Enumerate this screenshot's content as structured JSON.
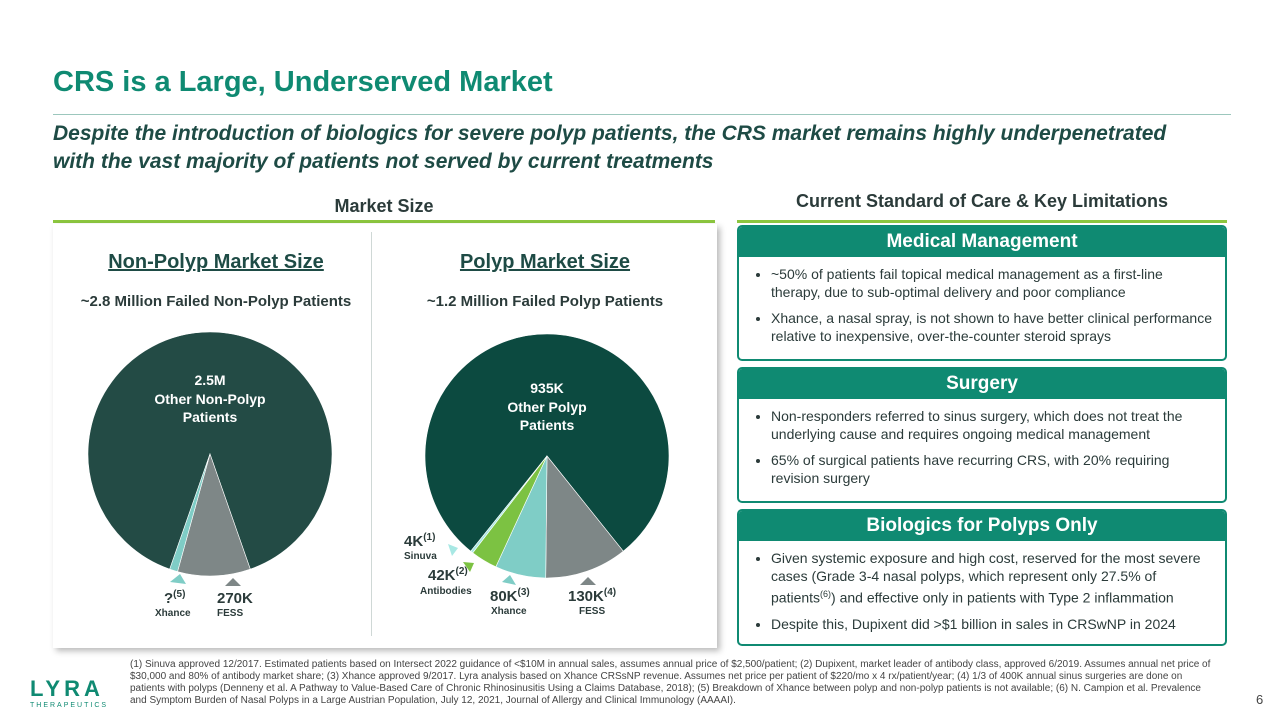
{
  "title": "CRS is a Large, Underserved Market",
  "subtitle": "Despite the introduction of biologics for severe polyp patients, the CRS market remains highly underpenetrated with the vast majority of patients not served by current treatments",
  "market_size_heading": "Market Size",
  "care_heading": "Current Standard of Care & Key Limitations",
  "non_polyp": {
    "title": "Non-Polyp Market Size",
    "subtitle": "~2.8 Million Failed Non-Polyp Patients",
    "slice_label_1": "2.5M",
    "slice_label_2": "Other Non-Polyp",
    "slice_label_3": "Patients",
    "xhance_value": "?",
    "xhance_sup": "(5)",
    "xhance_name": "Xhance",
    "fess_value": "270K",
    "fess_name": "FESS"
  },
  "polyp": {
    "title": "Polyp Market Size",
    "subtitle": "~1.2 Million Failed Polyp Patients",
    "slice_label_1": "935K",
    "slice_label_2": "Other Polyp",
    "slice_label_3": "Patients",
    "sinuva_value": "4K",
    "sinuva_sup": "(1)",
    "sinuva_name": "Sinuva",
    "antibodies_value": "42K",
    "antibodies_sup": "(2)",
    "antibodies_name": "Antibodies",
    "xhance_value": "80K",
    "xhance_sup": "(3)",
    "xhance_name": "Xhance",
    "fess_value": "130K",
    "fess_sup": "(4)",
    "fess_name": "FESS"
  },
  "chart_data": [
    {
      "type": "pie",
      "title": "Non-Polyp Market Size",
      "subtitle": "~2.8 Million Failed Non-Polyp Patients",
      "categories": [
        "Other Non-Polyp Patients",
        "FESS",
        "Xhance"
      ],
      "values": [
        2500000,
        270000,
        30000
      ],
      "colors": [
        "#234b45",
        "#7e8787",
        "#7fcdc6"
      ]
    },
    {
      "type": "pie",
      "title": "Polyp Market Size",
      "subtitle": "~1.2 Million Failed Polyp Patients",
      "categories": [
        "Other Polyp Patients",
        "FESS",
        "Xhance",
        "Antibodies",
        "Sinuva"
      ],
      "values": [
        935000,
        130000,
        80000,
        42000,
        4000
      ],
      "colors": [
        "#0c4a40",
        "#7e8787",
        "#7fcdc6",
        "#7cc242",
        "#a8e8e4"
      ]
    }
  ],
  "cards": [
    {
      "header": "Medical Management",
      "bullets": [
        "~50% of patients fail topical medical management as a first-line therapy, due to sub-optimal delivery and poor compliance",
        "Xhance, a nasal spray, is not shown to have better clinical performance relative to inexpensive, over-the-counter steroid sprays"
      ]
    },
    {
      "header": "Surgery",
      "bullets": [
        "Non-responders referred to sinus surgery, which does not treat the underlying cause and requires ongoing medical management",
        "65% of surgical patients have recurring CRS, with 20% requiring revision surgery"
      ]
    },
    {
      "header": "Biologics for Polyps Only",
      "bullet1_a": "Given systemic exposure and high cost, reserved for the most severe cases (Grade 3-4 nasal polyps, which represent only 27.5% of patients",
      "bullet1_sup": "(6)",
      "bullet1_b": ") and effective only in patients with Type 2 inflammation",
      "bullet2": "Despite this, Dupixent did >$1 billion in sales in CRSwNP in 2024"
    }
  ],
  "footnote": "(1) Sinuva approved 12/2017. Estimated patients based on Intersect 2022 guidance of <$10M in annual sales, assumes annual price of $2,500/patient; (2) Dupixent, market leader of antibody class, approved 6/2019. Assumes annual net price of $30,000 and 80% of antibody market share; (3) Xhance approved 9/2017. Lyra analysis based on Xhance CRSsNP revenue. Assumes net price per patient of $220/mo x 4 rx/patient/year; (4) 1/3 of 400K annual sinus surgeries are done on patients with polyps (Denneny et al. A Pathway to Value-Based Care of Chronic Rhinosinusitis Using a Claims Database, 2018); (5) Breakdown of Xhance between polyp and non-polyp patients is not available; (6) N. Campion et al. Prevalence and Symptom Burden of Nasal Polyps in a Large Austrian Population, July 12, 2021, Journal of Allergy and Clinical Immunology (AAAAI).",
  "logo": {
    "word": "LYRA",
    "sub": "THERAPEUTICS"
  },
  "page_number": "6"
}
